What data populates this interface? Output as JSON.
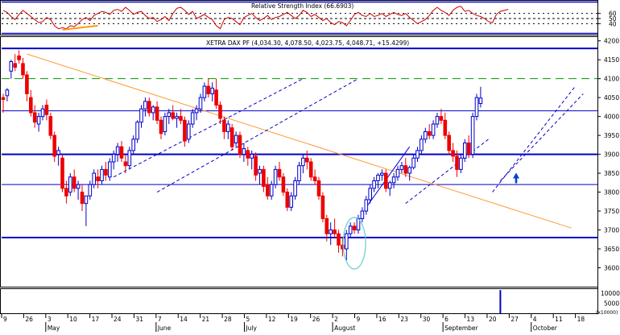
{
  "chart_data": [
    {
      "type": "line",
      "title": "Relative Strength Index (66.6903)",
      "ylim": [
        20,
        80
      ],
      "yticks": [
        40,
        50,
        60
      ],
      "reference_lines": [
        40,
        50,
        60
      ],
      "colors": {
        "rsi": "#cc0000",
        "box": "#0000cc",
        "ref": "#000000",
        "trend": "#ff9900"
      },
      "values": [
        66,
        62,
        54,
        48,
        58,
        66,
        60,
        54,
        48,
        42,
        44,
        52,
        48,
        36,
        30,
        32,
        30,
        36,
        34,
        40,
        48,
        52,
        46,
        56,
        60,
        64,
        62,
        58,
        66,
        68,
        64,
        72,
        66,
        58,
        62,
        64,
        56,
        50,
        52,
        44,
        48,
        54,
        46,
        60,
        70,
        72,
        66,
        58,
        64,
        50,
        54,
        58,
        52,
        48,
        36,
        30,
        48,
        52,
        50,
        44,
        38,
        52,
        56,
        60,
        52,
        46,
        50,
        56,
        48,
        52,
        54,
        58,
        62,
        56,
        50,
        56,
        66,
        62,
        54,
        58,
        52,
        46,
        50,
        42,
        38,
        44,
        42,
        36,
        46,
        58,
        62,
        56,
        54,
        60,
        54,
        56,
        60,
        54,
        58,
        62,
        58,
        56,
        60,
        52,
        46,
        40,
        44,
        48,
        56,
        66,
        72,
        66,
        62,
        56,
        66,
        72,
        74,
        64,
        66,
        60,
        56,
        54,
        50,
        44,
        42,
        58,
        64,
        66,
        68
      ]
    },
    {
      "type": "candlestick",
      "title": "XETRA DAX PF (4,034.30, 4,078.50, 4,023.75, 4,048.71, +15.4299)",
      "ylim": [
        3550,
        4210
      ],
      "yticks": [
        3600,
        3650,
        3700,
        3750,
        3800,
        3850,
        3900,
        3950,
        4000,
        4050,
        4100,
        4150,
        4200
      ],
      "x_tick_labels": [
        "9",
        "26",
        "3",
        "10",
        "17",
        "24",
        "31",
        "7",
        "14",
        "21",
        "28",
        "5",
        "12",
        "19",
        "26",
        "2",
        "9",
        "16",
        "23",
        "30",
        "6",
        "13",
        "20",
        "27",
        "4",
        "11",
        "18"
      ],
      "month_labels": [
        "May",
        "June",
        "July",
        "August",
        "September",
        "October"
      ],
      "colors": {
        "up": "#0000cc",
        "down": "#ee0000",
        "level": "#0000cc",
        "dashed_level": "#009900",
        "trendline": "#ff9933",
        "channel": "#0000cc",
        "circle": "#66cccc",
        "arrow": "#0044cc"
      },
      "horizontal_levels": [
        4180,
        4015,
        3900,
        3820,
        3680
      ],
      "dashed_levels": [
        4100
      ],
      "trendline": {
        "from": [
          6,
          4165
        ],
        "to": [
          144,
          3705
        ]
      },
      "channels": [
        {
          "from": [
            28,
            3840
          ],
          "to": [
            76,
            4100
          ]
        },
        {
          "from": [
            39,
            3800
          ],
          "to": [
            90,
            4100
          ]
        },
        {
          "from": [
            92,
            3760
          ],
          "to": [
            103,
            3920
          ]
        },
        {
          "from": [
            102,
            3770
          ],
          "to": [
            123,
            3940
          ]
        },
        {
          "from": [
            124,
            3800
          ],
          "to": [
            145,
            4080
          ]
        },
        {
          "from": [
            126,
            3830
          ],
          "to": [
            147,
            4060
          ]
        }
      ],
      "candles": [
        {
          "o": 4050,
          "h": 4060,
          "l": 4010,
          "c": 4045
        },
        {
          "o": 4055,
          "h": 4075,
          "l": 4040,
          "c": 4070
        },
        {
          "o": 4120,
          "h": 4150,
          "l": 4100,
          "c": 4145
        },
        {
          "o": 4140,
          "h": 4165,
          "l": 4120,
          "c": 4130
        },
        {
          "o": 4160,
          "h": 4175,
          "l": 4140,
          "c": 4150
        },
        {
          "o": 4140,
          "h": 4155,
          "l": 4100,
          "c": 4110
        },
        {
          "o": 4110,
          "h": 4120,
          "l": 4040,
          "c": 4060
        },
        {
          "o": 4050,
          "h": 4070,
          "l": 4000,
          "c": 4010
        },
        {
          "o": 4010,
          "h": 4030,
          "l": 3970,
          "c": 3985
        },
        {
          "o": 3980,
          "h": 4010,
          "l": 3960,
          "c": 4000
        },
        {
          "o": 4000,
          "h": 4030,
          "l": 3990,
          "c": 4020
        },
        {
          "o": 4030,
          "h": 4045,
          "l": 3990,
          "c": 4005
        },
        {
          "o": 4000,
          "h": 4010,
          "l": 3940,
          "c": 3950
        },
        {
          "o": 3950,
          "h": 3960,
          "l": 3880,
          "c": 3895
        },
        {
          "o": 3900,
          "h": 3920,
          "l": 3870,
          "c": 3910
        },
        {
          "o": 3890,
          "h": 3900,
          "l": 3800,
          "c": 3810
        },
        {
          "o": 3810,
          "h": 3830,
          "l": 3770,
          "c": 3790
        },
        {
          "o": 3800,
          "h": 3850,
          "l": 3790,
          "c": 3840
        },
        {
          "o": 3840,
          "h": 3860,
          "l": 3800,
          "c": 3810
        },
        {
          "o": 3810,
          "h": 3830,
          "l": 3780,
          "c": 3820
        },
        {
          "o": 3800,
          "h": 3820,
          "l": 3750,
          "c": 3770
        },
        {
          "o": 3770,
          "h": 3790,
          "l": 3710,
          "c": 3790
        },
        {
          "o": 3790,
          "h": 3830,
          "l": 3780,
          "c": 3820
        },
        {
          "o": 3820,
          "h": 3860,
          "l": 3810,
          "c": 3850
        },
        {
          "o": 3840,
          "h": 3860,
          "l": 3810,
          "c": 3830
        },
        {
          "o": 3830,
          "h": 3870,
          "l": 3820,
          "c": 3860
        },
        {
          "o": 3860,
          "h": 3880,
          "l": 3830,
          "c": 3845
        },
        {
          "o": 3840,
          "h": 3890,
          "l": 3830,
          "c": 3880
        },
        {
          "o": 3880,
          "h": 3910,
          "l": 3860,
          "c": 3900
        },
        {
          "o": 3900,
          "h": 3930,
          "l": 3880,
          "c": 3920
        },
        {
          "o": 3920,
          "h": 3935,
          "l": 3880,
          "c": 3890
        },
        {
          "o": 3880,
          "h": 3900,
          "l": 3850,
          "c": 3870
        },
        {
          "o": 3870,
          "h": 3920,
          "l": 3860,
          "c": 3910
        },
        {
          "o": 3910,
          "h": 3950,
          "l": 3900,
          "c": 3940
        },
        {
          "o": 3940,
          "h": 3990,
          "l": 3930,
          "c": 3985
        },
        {
          "o": 3985,
          "h": 4030,
          "l": 3970,
          "c": 4020
        },
        {
          "o": 4020,
          "h": 4050,
          "l": 4000,
          "c": 4040
        },
        {
          "o": 4040,
          "h": 4050,
          "l": 4000,
          "c": 4010
        },
        {
          "o": 4010,
          "h": 4030,
          "l": 3990,
          "c": 4025
        },
        {
          "o": 4025,
          "h": 4040,
          "l": 3980,
          "c": 3990
        },
        {
          "o": 3990,
          "h": 4000,
          "l": 3940,
          "c": 3955
        },
        {
          "o": 3960,
          "h": 4010,
          "l": 3950,
          "c": 4000
        },
        {
          "o": 4000,
          "h": 4020,
          "l": 3980,
          "c": 4010
        },
        {
          "o": 4010,
          "h": 4030,
          "l": 3990,
          "c": 3995
        },
        {
          "o": 3995,
          "h": 4010,
          "l": 3970,
          "c": 4000
        },
        {
          "o": 4000,
          "h": 4020,
          "l": 3980,
          "c": 3990
        },
        {
          "o": 3990,
          "h": 4000,
          "l": 3920,
          "c": 3935
        },
        {
          "o": 3940,
          "h": 3990,
          "l": 3930,
          "c": 3980
        },
        {
          "o": 3980,
          "h": 4020,
          "l": 3970,
          "c": 4010
        },
        {
          "o": 4010,
          "h": 4030,
          "l": 3990,
          "c": 4020
        },
        {
          "o": 4020,
          "h": 4060,
          "l": 4010,
          "c": 4050
        },
        {
          "o": 4050,
          "h": 4090,
          "l": 4040,
          "c": 4080
        },
        {
          "o": 4080,
          "h": 4100,
          "l": 4050,
          "c": 4060
        },
        {
          "o": 4060,
          "h": 4090,
          "l": 4040,
          "c": 4075
        },
        {
          "o": 4070,
          "h": 4100,
          "l": 4020,
          "c": 4030
        },
        {
          "o": 4030,
          "h": 4040,
          "l": 3980,
          "c": 3995
        },
        {
          "o": 3990,
          "h": 4000,
          "l": 3940,
          "c": 3960
        },
        {
          "o": 3960,
          "h": 3990,
          "l": 3940,
          "c": 3980
        },
        {
          "o": 3970,
          "h": 3980,
          "l": 3910,
          "c": 3920
        },
        {
          "o": 3930,
          "h": 3960,
          "l": 3920,
          "c": 3950
        },
        {
          "o": 3950,
          "h": 3960,
          "l": 3890,
          "c": 3900
        },
        {
          "o": 3900,
          "h": 3930,
          "l": 3880,
          "c": 3915
        },
        {
          "o": 3910,
          "h": 3920,
          "l": 3870,
          "c": 3890
        },
        {
          "o": 3890,
          "h": 3910,
          "l": 3860,
          "c": 3900
        },
        {
          "o": 3895,
          "h": 3905,
          "l": 3830,
          "c": 3845
        },
        {
          "o": 3850,
          "h": 3870,
          "l": 3820,
          "c": 3860
        },
        {
          "o": 3860,
          "h": 3870,
          "l": 3800,
          "c": 3815
        },
        {
          "o": 3820,
          "h": 3840,
          "l": 3780,
          "c": 3790
        },
        {
          "o": 3790,
          "h": 3830,
          "l": 3780,
          "c": 3820
        },
        {
          "o": 3820,
          "h": 3870,
          "l": 3810,
          "c": 3860
        },
        {
          "o": 3860,
          "h": 3880,
          "l": 3830,
          "c": 3840
        },
        {
          "o": 3840,
          "h": 3850,
          "l": 3790,
          "c": 3800
        },
        {
          "o": 3800,
          "h": 3810,
          "l": 3750,
          "c": 3760
        },
        {
          "o": 3760,
          "h": 3800,
          "l": 3750,
          "c": 3790
        },
        {
          "o": 3790,
          "h": 3840,
          "l": 3780,
          "c": 3830
        },
        {
          "o": 3830,
          "h": 3880,
          "l": 3820,
          "c": 3870
        },
        {
          "o": 3870,
          "h": 3900,
          "l": 3850,
          "c": 3890
        },
        {
          "o": 3890,
          "h": 3910,
          "l": 3860,
          "c": 3880
        },
        {
          "o": 3880,
          "h": 3890,
          "l": 3830,
          "c": 3840
        },
        {
          "o": 3840,
          "h": 3860,
          "l": 3820,
          "c": 3830
        },
        {
          "o": 3830,
          "h": 3840,
          "l": 3780,
          "c": 3790
        },
        {
          "o": 3790,
          "h": 3800,
          "l": 3720,
          "c": 3730
        },
        {
          "o": 3730,
          "h": 3740,
          "l": 3670,
          "c": 3690
        },
        {
          "o": 3690,
          "h": 3720,
          "l": 3660,
          "c": 3700
        },
        {
          "o": 3700,
          "h": 3730,
          "l": 3680,
          "c": 3690
        },
        {
          "o": 3690,
          "h": 3700,
          "l": 3640,
          "c": 3660
        },
        {
          "o": 3660,
          "h": 3680,
          "l": 3630,
          "c": 3650
        },
        {
          "o": 3650,
          "h": 3700,
          "l": 3620,
          "c": 3690
        },
        {
          "o": 3690,
          "h": 3720,
          "l": 3680,
          "c": 3710
        },
        {
          "o": 3710,
          "h": 3720,
          "l": 3690,
          "c": 3700
        },
        {
          "o": 3700,
          "h": 3740,
          "l": 3690,
          "c": 3730
        },
        {
          "o": 3730,
          "h": 3760,
          "l": 3720,
          "c": 3750
        },
        {
          "o": 3750,
          "h": 3790,
          "l": 3740,
          "c": 3780
        },
        {
          "o": 3780,
          "h": 3820,
          "l": 3770,
          "c": 3810
        },
        {
          "o": 3810,
          "h": 3840,
          "l": 3800,
          "c": 3830
        },
        {
          "o": 3830,
          "h": 3850,
          "l": 3810,
          "c": 3845
        },
        {
          "o": 3845,
          "h": 3860,
          "l": 3830,
          "c": 3850
        },
        {
          "o": 3850,
          "h": 3860,
          "l": 3800,
          "c": 3810
        },
        {
          "o": 3810,
          "h": 3830,
          "l": 3790,
          "c": 3825
        },
        {
          "o": 3825,
          "h": 3850,
          "l": 3810,
          "c": 3840
        },
        {
          "o": 3840,
          "h": 3870,
          "l": 3830,
          "c": 3860
        },
        {
          "o": 3860,
          "h": 3880,
          "l": 3850,
          "c": 3870
        },
        {
          "o": 3870,
          "h": 3890,
          "l": 3840,
          "c": 3850
        },
        {
          "o": 3850,
          "h": 3870,
          "l": 3830,
          "c": 3865
        },
        {
          "o": 3865,
          "h": 3900,
          "l": 3860,
          "c": 3890
        },
        {
          "o": 3890,
          "h": 3920,
          "l": 3880,
          "c": 3910
        },
        {
          "o": 3910,
          "h": 3950,
          "l": 3900,
          "c": 3940
        },
        {
          "o": 3940,
          "h": 3970,
          "l": 3930,
          "c": 3960
        },
        {
          "o": 3960,
          "h": 3980,
          "l": 3940,
          "c": 3950
        },
        {
          "o": 3950,
          "h": 3990,
          "l": 3940,
          "c": 3980
        },
        {
          "o": 3980,
          "h": 4010,
          "l": 3970,
          "c": 4000
        },
        {
          "o": 4000,
          "h": 4020,
          "l": 3980,
          "c": 3990
        },
        {
          "o": 3990,
          "h": 4010,
          "l": 3940,
          "c": 3950
        },
        {
          "o": 3950,
          "h": 3960,
          "l": 3900,
          "c": 3910
        },
        {
          "o": 3910,
          "h": 3930,
          "l": 3880,
          "c": 3895
        },
        {
          "o": 3895,
          "h": 3910,
          "l": 3840,
          "c": 3860
        },
        {
          "o": 3860,
          "h": 3900,
          "l": 3850,
          "c": 3890
        },
        {
          "o": 3890,
          "h": 3940,
          "l": 3880,
          "c": 3930
        },
        {
          "o": 3930,
          "h": 3950,
          "l": 3890,
          "c": 3900
        },
        {
          "o": 3900,
          "h": 4010,
          "l": 3890,
          "c": 4000
        },
        {
          "o": 4000,
          "h": 4060,
          "l": 3990,
          "c": 4050
        },
        {
          "o": 4034.3,
          "h": 4078.5,
          "l": 4023.75,
          "c": 4048.71
        }
      ]
    },
    {
      "type": "bar",
      "title": "",
      "ylim": [
        0,
        12000
      ],
      "yticks": [
        5000,
        10000
      ],
      "tick_labels": [
        "10000",
        "5000",
        "(x10000)"
      ],
      "colors": {
        "bar": "#0000cc"
      },
      "values": [
        0,
        0,
        0,
        0,
        0,
        0,
        0,
        0,
        0,
        0,
        0,
        0,
        0,
        0,
        0,
        0,
        0,
        0,
        0,
        0,
        0,
        0,
        0,
        0,
        0,
        0,
        0,
        0,
        0,
        0,
        0,
        0,
        0,
        0,
        0,
        0,
        0,
        0,
        0,
        0,
        0,
        0,
        0,
        0,
        0,
        0,
        0,
        0,
        0,
        0,
        0,
        0,
        0,
        0,
        0,
        0,
        0,
        0,
        0,
        0,
        0,
        0,
        0,
        0,
        0,
        0,
        0,
        0,
        0,
        0,
        0,
        0,
        0,
        0,
        0,
        0,
        0,
        0,
        0,
        0,
        0,
        0,
        0,
        0,
        0,
        0,
        0,
        0,
        0,
        0,
        0,
        0,
        0,
        0,
        0,
        0,
        0,
        0,
        0,
        0,
        0,
        0,
        0,
        0,
        0,
        0,
        0,
        0,
        0,
        0,
        0,
        0,
        0,
        0,
        0,
        0,
        0,
        0,
        0,
        0,
        0,
        0,
        0,
        0,
        0,
        0,
        11500
      ]
    }
  ]
}
